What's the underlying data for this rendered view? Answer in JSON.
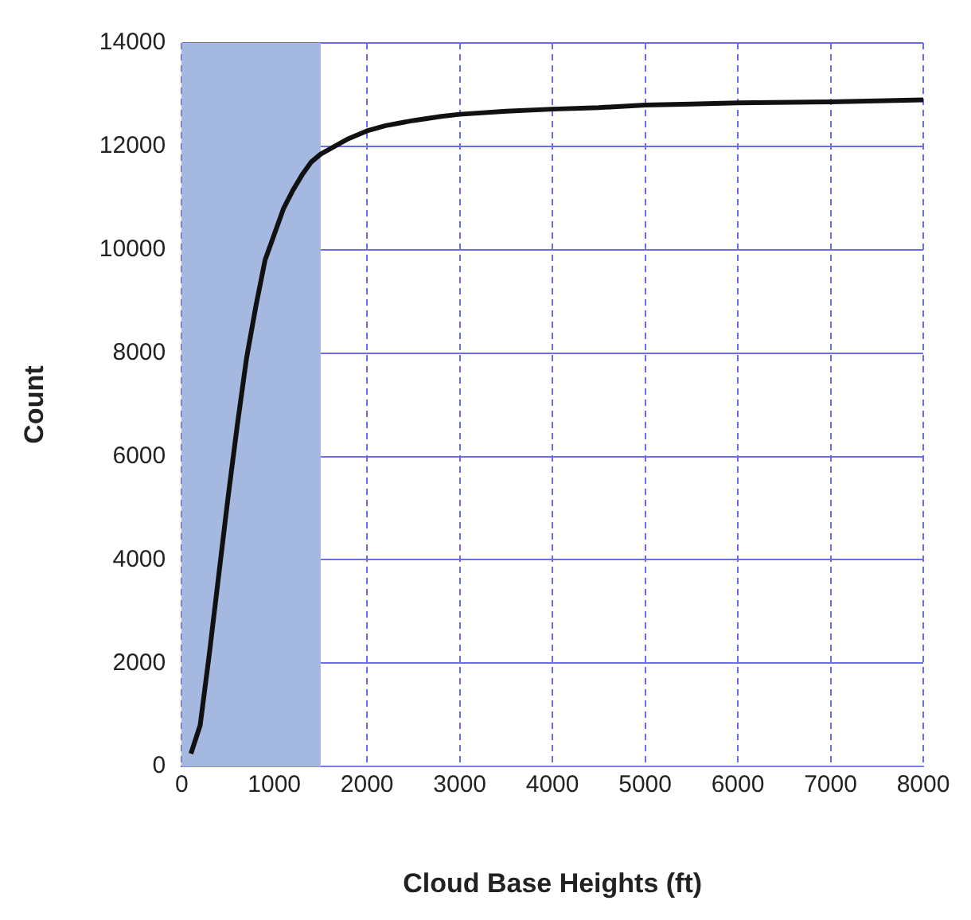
{
  "chart_data": {
    "type": "line",
    "xlabel": "Cloud Base Heights (ft)",
    "ylabel": "Count",
    "series": [
      {
        "color": "#111111",
        "x": [
          100,
          200,
          300,
          400,
          500,
          600,
          700,
          800,
          900,
          1000,
          1100,
          1200,
          1300,
          1400,
          1500,
          1600,
          1800,
          2000,
          2200,
          2500,
          2800,
          3000,
          3500,
          4000,
          4500,
          5000,
          5500,
          6000,
          7000,
          8000
        ],
        "values": [
          250,
          800,
          2200,
          3700,
          5200,
          6600,
          7900,
          8900,
          9800,
          10300,
          10800,
          11150,
          11450,
          11700,
          11850,
          11950,
          12150,
          12300,
          12400,
          12500,
          12580,
          12620,
          12680,
          12720,
          12750,
          12800,
          12820,
          12840,
          12860,
          12900
        ]
      }
    ],
    "xlim": [
      0,
      8000
    ],
    "xticks": [
      0,
      1000,
      2000,
      3000,
      4000,
      5000,
      6000,
      7000,
      8000
    ],
    "ylim": [
      0,
      14000
    ],
    "yticks": [
      0,
      2000,
      4000,
      6000,
      8000,
      10000,
      12000,
      14000
    ],
    "bands": [
      {
        "axis": "x",
        "from": 0,
        "to": 1500,
        "color": "#a4b8e0"
      }
    ],
    "grid": true,
    "legend": false,
    "marker": "none",
    "line_style": "solid"
  }
}
